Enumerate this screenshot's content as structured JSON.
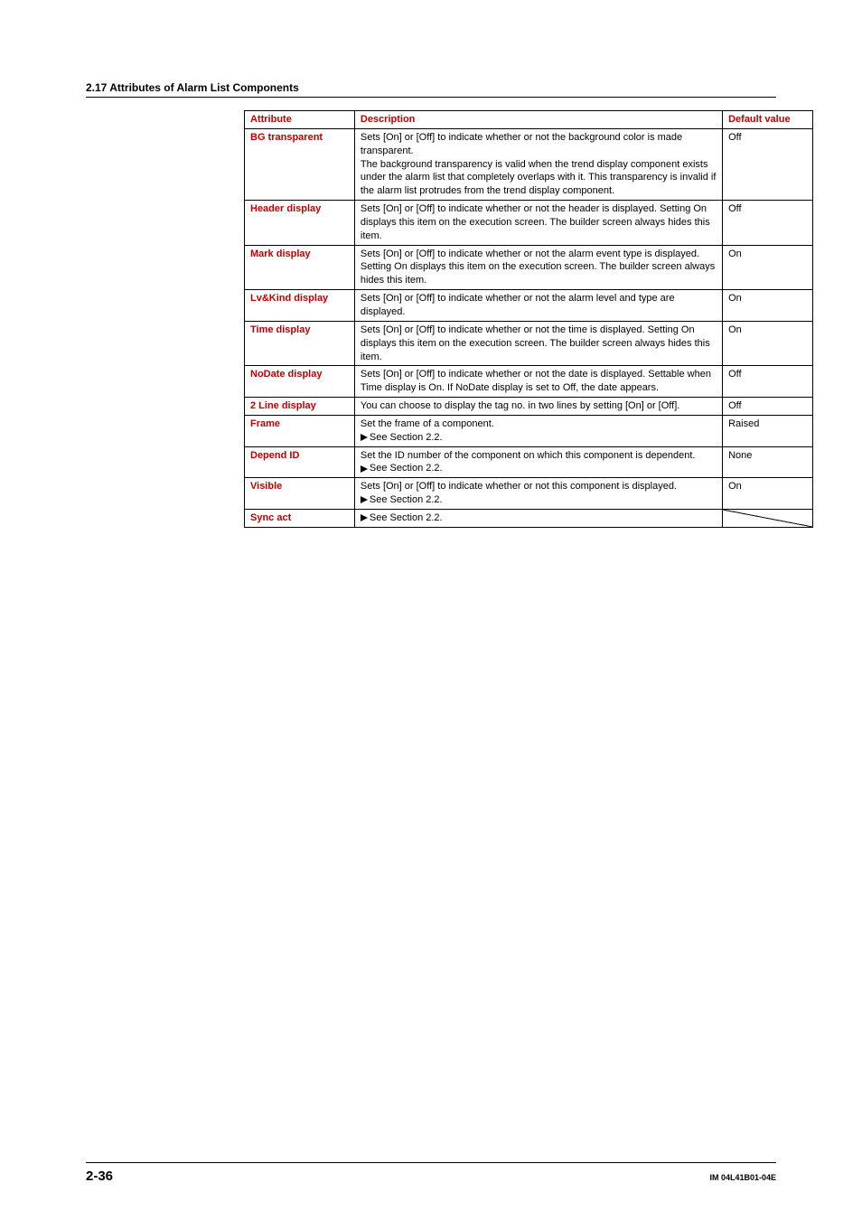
{
  "section_header": "2.17  Attributes of Alarm List Components",
  "columns": {
    "attr": "Attribute",
    "desc": "Description",
    "def": "Default value"
  },
  "rows": [
    {
      "attr": "BG transparent",
      "desc": [
        "Sets [On] or [Off] to indicate whether or not the background color is made transparent.",
        "The background transparency is valid when the trend display component exists under the alarm list that completely overlaps with it.  This transparency is invalid if the alarm list protrudes from the trend display component."
      ],
      "def": "Off"
    },
    {
      "attr": "Header display",
      "desc": [
        "Sets [On] or [Off] to indicate whether or not the header is displayed. Setting On displays this item on the execution screen.  The builder screen always hides this item."
      ],
      "def": "Off"
    },
    {
      "attr": "Mark display",
      "desc": [
        "Sets [On] or [Off] to indicate whether or not the alarm event type is displayed. Setting On displays this item on the execution screen. The builder screen always hides this item."
      ],
      "def": "On"
    },
    {
      "attr": "Lv&Kind display",
      "desc": [
        "Sets [On] or [Off] to indicate whether or not the alarm level and type are displayed."
      ],
      "def": "On"
    },
    {
      "attr": "Time display",
      "desc": [
        "Sets [On] or [Off] to indicate whether or not the time is displayed.  Setting On displays this item on the execution screen.  The builder screen always hides this item."
      ],
      "def": "On"
    },
    {
      "attr": "NoDate display",
      "desc": [
        "Sets [On] or [Off] to indicate whether or not the date is displayed.  Settable when Time display is On.  If NoDate display is set to Off, the date appears."
      ],
      "def": "Off"
    },
    {
      "attr": "2 Line display",
      "desc": [
        "You can choose to display the tag no. in two lines by setting [On] or [Off]."
      ],
      "def": "Off"
    },
    {
      "attr": "Frame",
      "desc": [
        "Set the frame of a component."
      ],
      "see": "See Section 2.2.",
      "def": "Raised"
    },
    {
      "attr": "Depend ID",
      "desc": [
        "Set the ID number of the component on which this component is dependent."
      ],
      "see": "See Section 2.2.",
      "def": "None"
    },
    {
      "attr": "Visible",
      "desc": [
        "Sets [On] or [Off] to indicate whether or not this component is displayed."
      ],
      "see": "See Section 2.2.",
      "def": "On"
    },
    {
      "attr": "Sync act",
      "see_only": "See Section 2.2.",
      "diag": true
    }
  ],
  "footer": {
    "page": "2-36",
    "doc_id": "IM 04L41B01-04E"
  }
}
